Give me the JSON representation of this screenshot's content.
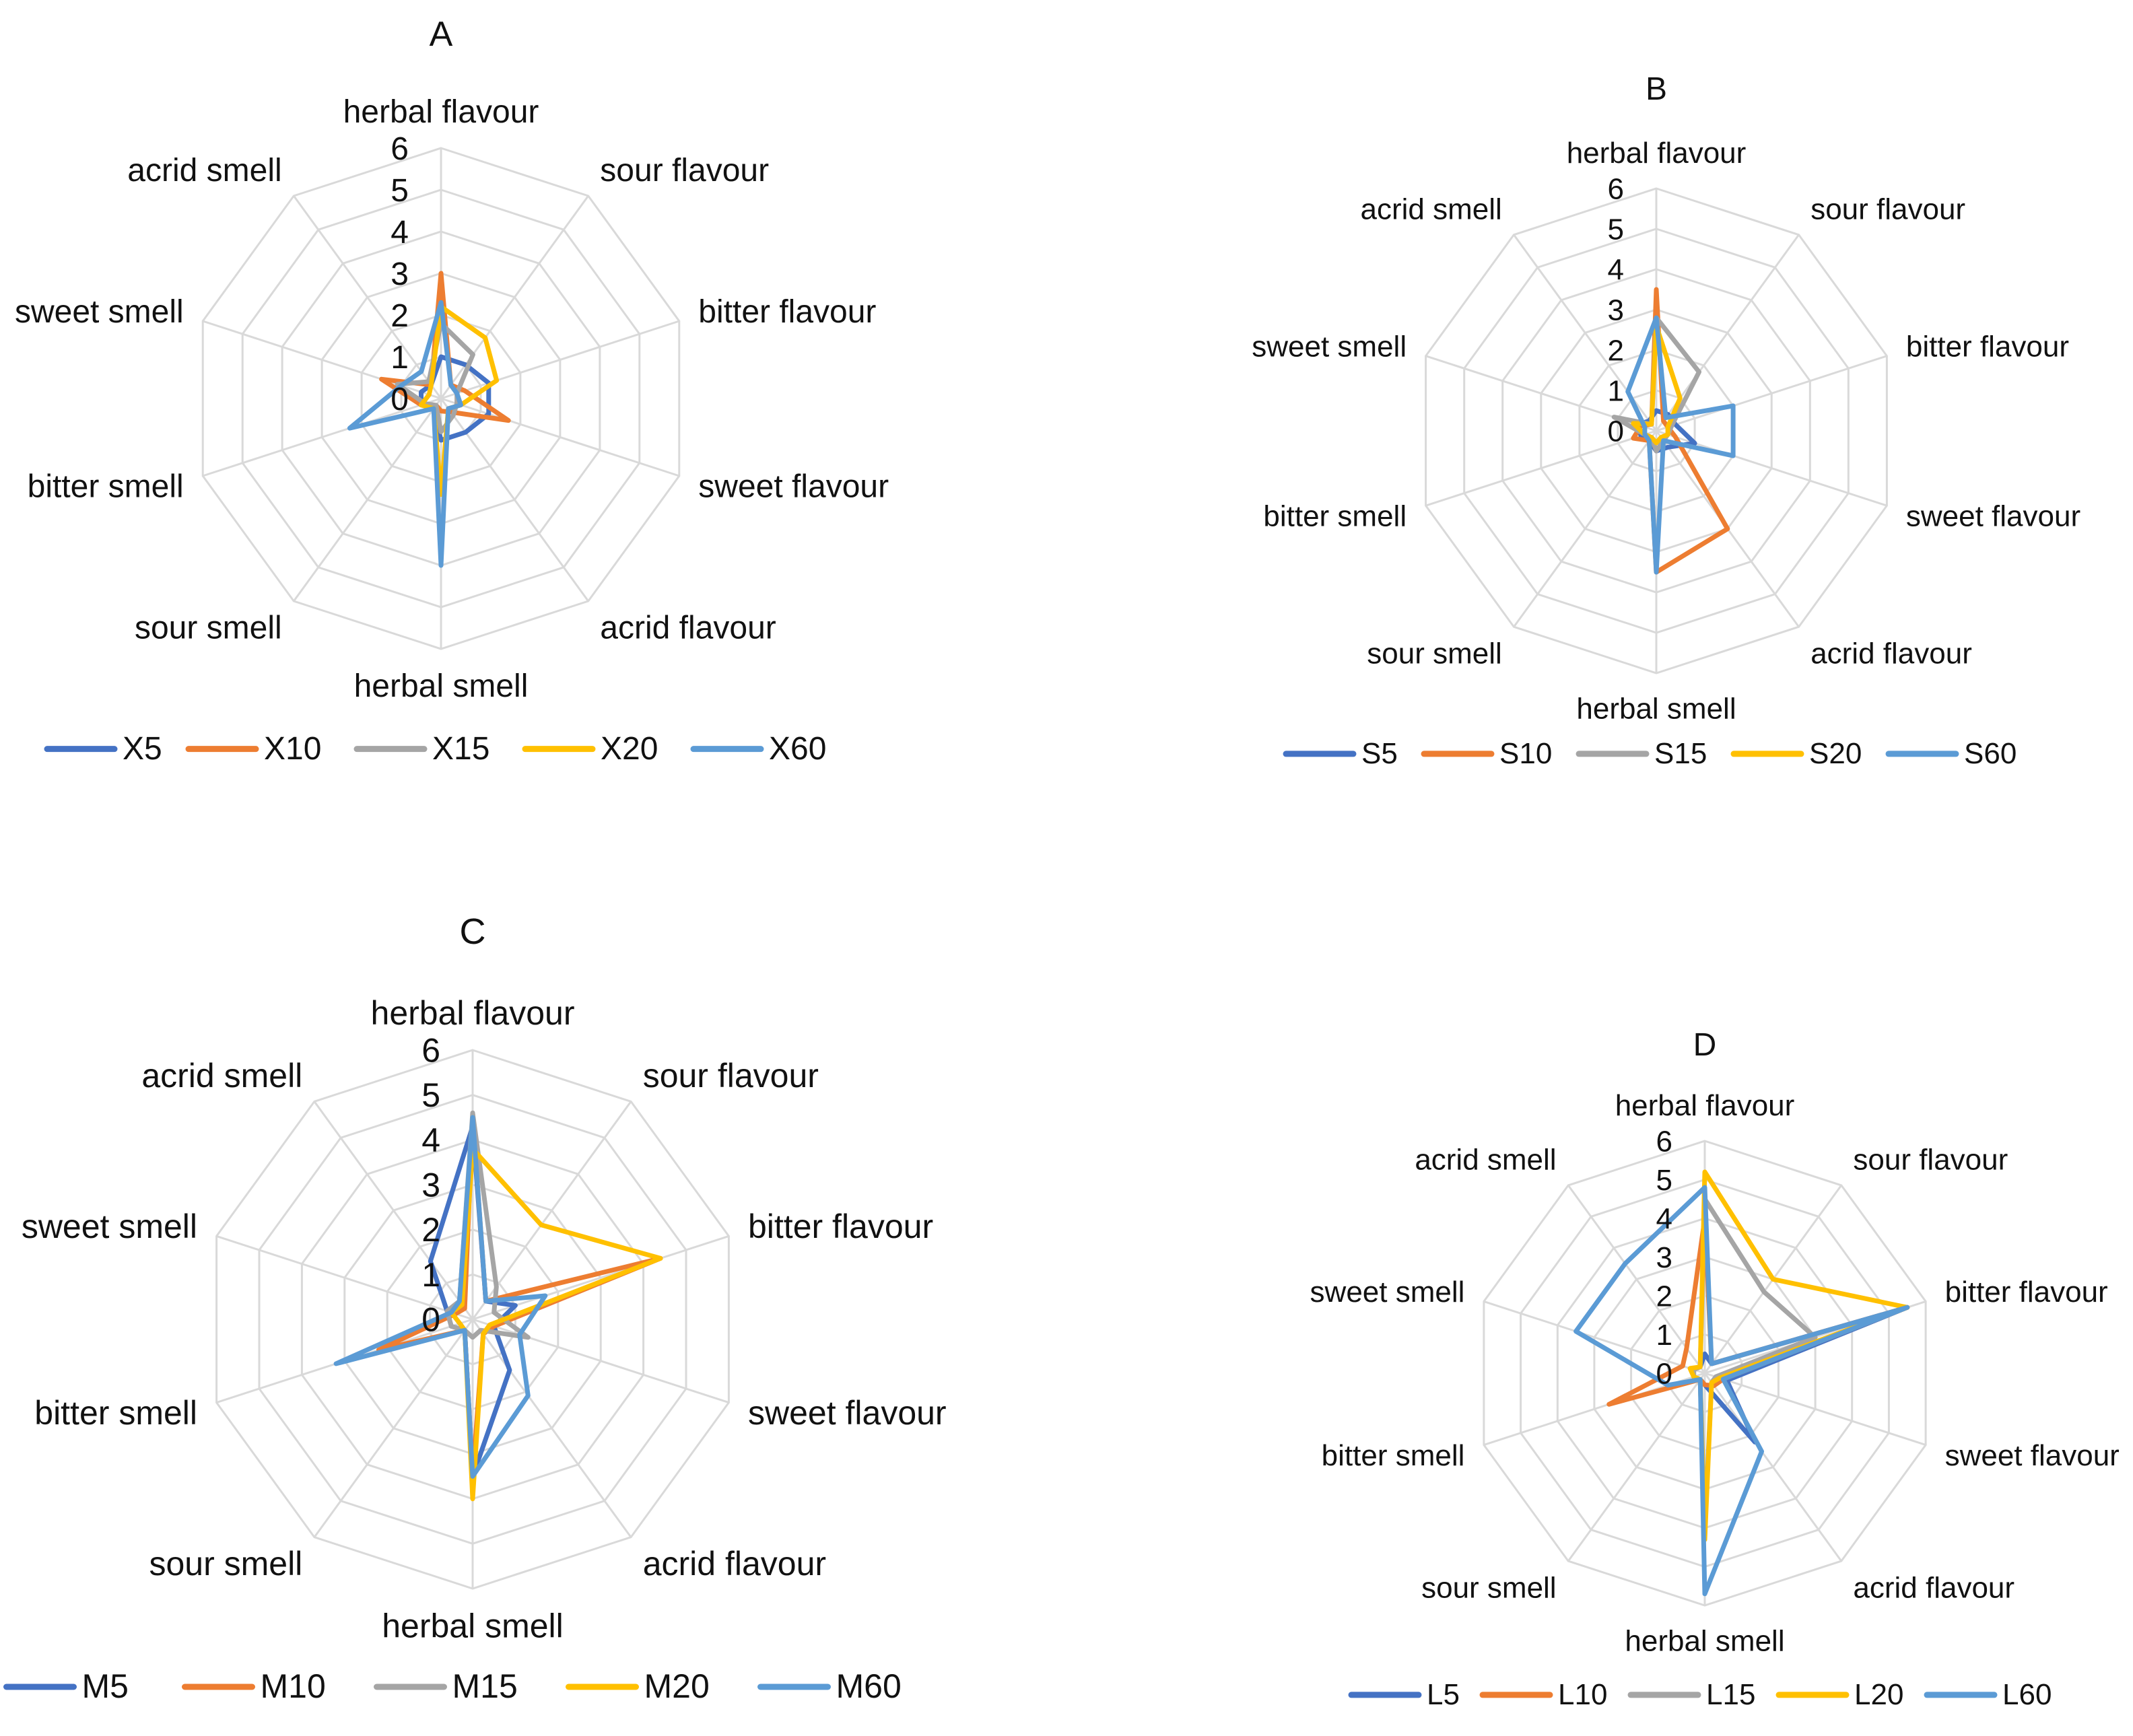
{
  "chart_data": [
    {
      "type": "radar",
      "title": "A",
      "axes": [
        "herbal flavour",
        "sour flavour",
        "bitter flavour",
        "sweet flavour",
        "acrid flavour",
        "herbal smell",
        "sour smell",
        "bitter smell",
        "sweet smell",
        "acrid smell"
      ],
      "rlim": [
        0,
        6
      ],
      "ticks": [
        "0",
        "1",
        "2",
        "3",
        "4",
        "5",
        "6"
      ],
      "legend_position": "bottom",
      "series": [
        {
          "name": "X5",
          "color": "#4472C4",
          "values": [
            1.0,
            1.0,
            1.2,
            1.2,
            1.0,
            1.0,
            0.3,
            0.5,
            0.5,
            0.4
          ]
        },
        {
          "name": "X10",
          "color": "#ED7D31",
          "values": [
            3.0,
            0.4,
            0.6,
            1.7,
            0.4,
            0.3,
            0.2,
            0.5,
            1.5,
            0.4
          ]
        },
        {
          "name": "X15",
          "color": "#A5A5A5",
          "values": [
            1.8,
            1.3,
            0.4,
            0.4,
            0.5,
            0.8,
            0.2,
            0.4,
            1.1,
            0.5
          ]
        },
        {
          "name": "X20",
          "color": "#FFC000",
          "values": [
            2.2,
            1.8,
            1.4,
            0.5,
            0.3,
            2.3,
            0.3,
            0.5,
            0.3,
            0.4
          ]
        },
        {
          "name": "X60",
          "color": "#5B9BD5",
          "values": [
            2.3,
            0.4,
            0.4,
            0.5,
            0.3,
            4.0,
            0.3,
            2.3,
            1.0,
            0.8
          ]
        }
      ]
    },
    {
      "type": "radar",
      "title": "B",
      "axes": [
        "herbal flavour",
        "sour flavour",
        "bitter flavour",
        "sweet flavour",
        "acrid flavour",
        "herbal smell",
        "sour smell",
        "bitter smell",
        "sweet smell",
        "acrid smell"
      ],
      "rlim": [
        0,
        6
      ],
      "ticks": [
        "0",
        "1",
        "2",
        "3",
        "4",
        "5",
        "6"
      ],
      "legend_position": "bottom",
      "series": [
        {
          "name": "S5",
          "color": "#4472C4",
          "values": [
            0.5,
            0.5,
            0.5,
            1.0,
            0.5,
            0.5,
            0.3,
            0.4,
            0.5,
            0.3
          ]
        },
        {
          "name": "S10",
          "color": "#ED7D31",
          "values": [
            3.5,
            0.3,
            0.3,
            0.5,
            3.0,
            3.5,
            0.3,
            0.6,
            0.4,
            0.2
          ]
        },
        {
          "name": "S15",
          "color": "#A5A5A5",
          "values": [
            2.8,
            1.8,
            0.4,
            0.3,
            0.3,
            0.5,
            0.2,
            0.3,
            1.1,
            0.2
          ]
        },
        {
          "name": "S20",
          "color": "#FFC000",
          "values": [
            2.6,
            1.0,
            0.3,
            0.3,
            0.2,
            0.3,
            0.2,
            0.3,
            0.6,
            0.2
          ]
        },
        {
          "name": "S60",
          "color": "#5B9BD5",
          "values": [
            2.8,
            0.4,
            2.0,
            2.0,
            0.3,
            3.5,
            0.3,
            0.3,
            0.3,
            1.2
          ]
        }
      ]
    },
    {
      "type": "radar",
      "title": "C",
      "axes": [
        "herbal flavour",
        "sour flavour",
        "bitter flavour",
        "sweet flavour",
        "acrid flavour",
        "herbal smell",
        "sour smell",
        "bitter smell",
        "sweet smell",
        "acrid smell"
      ],
      "rlim": [
        0,
        6
      ],
      "ticks": [
        "0",
        "1",
        "2",
        "3",
        "4",
        "5",
        "6"
      ],
      "legend_position": "bottom",
      "series": [
        {
          "name": "M5",
          "color": "#4472C4",
          "values": [
            4.3,
            0.5,
            1.0,
            0.5,
            1.4,
            3.5,
            0.3,
            0.5,
            0.6,
            1.6
          ]
        },
        {
          "name": "M10",
          "color": "#ED7D31",
          "values": [
            4.5,
            0.5,
            4.4,
            0.5,
            0.4,
            3.5,
            0.3,
            2.2,
            0.4,
            0.3
          ]
        },
        {
          "name": "M15",
          "color": "#A5A5A5",
          "values": [
            4.6,
            0.9,
            0.5,
            1.3,
            0.3,
            0.4,
            0.3,
            0.5,
            0.6,
            0.5
          ]
        },
        {
          "name": "M20",
          "color": "#FFC000",
          "values": [
            3.8,
            2.6,
            4.4,
            0.4,
            0.4,
            4.0,
            0.3,
            0.3,
            0.5,
            0.4
          ]
        },
        {
          "name": "M60",
          "color": "#5B9BD5",
          "values": [
            4.5,
            0.5,
            1.7,
            1.1,
            2.1,
            3.5,
            0.3,
            3.2,
            0.5,
            0.5
          ]
        }
      ]
    },
    {
      "type": "radar",
      "title": "D",
      "axes": [
        "herbal flavour",
        "sour flavour",
        "bitter flavour",
        "sweet flavour",
        "acrid flavour",
        "herbal smell",
        "sour smell",
        "bitter smell",
        "sweet smell",
        "acrid smell"
      ],
      "rlim": [
        0,
        6
      ],
      "ticks": [
        "0",
        "1",
        "2",
        "3",
        "4",
        "5",
        "6"
      ],
      "legend_position": "bottom",
      "series": [
        {
          "name": "L5",
          "color": "#4472C4",
          "values": [
            0.5,
            0.3,
            5.5,
            0.6,
            2.2,
            0.3,
            0.2,
            0.3,
            0.3,
            0.2
          ]
        },
        {
          "name": "L10",
          "color": "#ED7D31",
          "values": [
            4.0,
            0.3,
            5.5,
            0.5,
            0.4,
            0.3,
            0.2,
            2.6,
            0.6,
            0.8
          ]
        },
        {
          "name": "L15",
          "color": "#A5A5A5",
          "values": [
            4.5,
            2.6,
            3.0,
            0.3,
            0.3,
            4.0,
            0.2,
            0.3,
            0.3,
            0.2
          ]
        },
        {
          "name": "L20",
          "color": "#FFC000",
          "values": [
            5.2,
            3.0,
            5.5,
            0.4,
            0.3,
            4.3,
            0.2,
            0.3,
            0.4,
            0.2
          ]
        },
        {
          "name": "L60",
          "color": "#5B9BD5",
          "values": [
            4.8,
            0.3,
            5.5,
            0.5,
            2.5,
            5.7,
            0.2,
            1.0,
            3.5,
            3.5
          ]
        }
      ]
    }
  ]
}
